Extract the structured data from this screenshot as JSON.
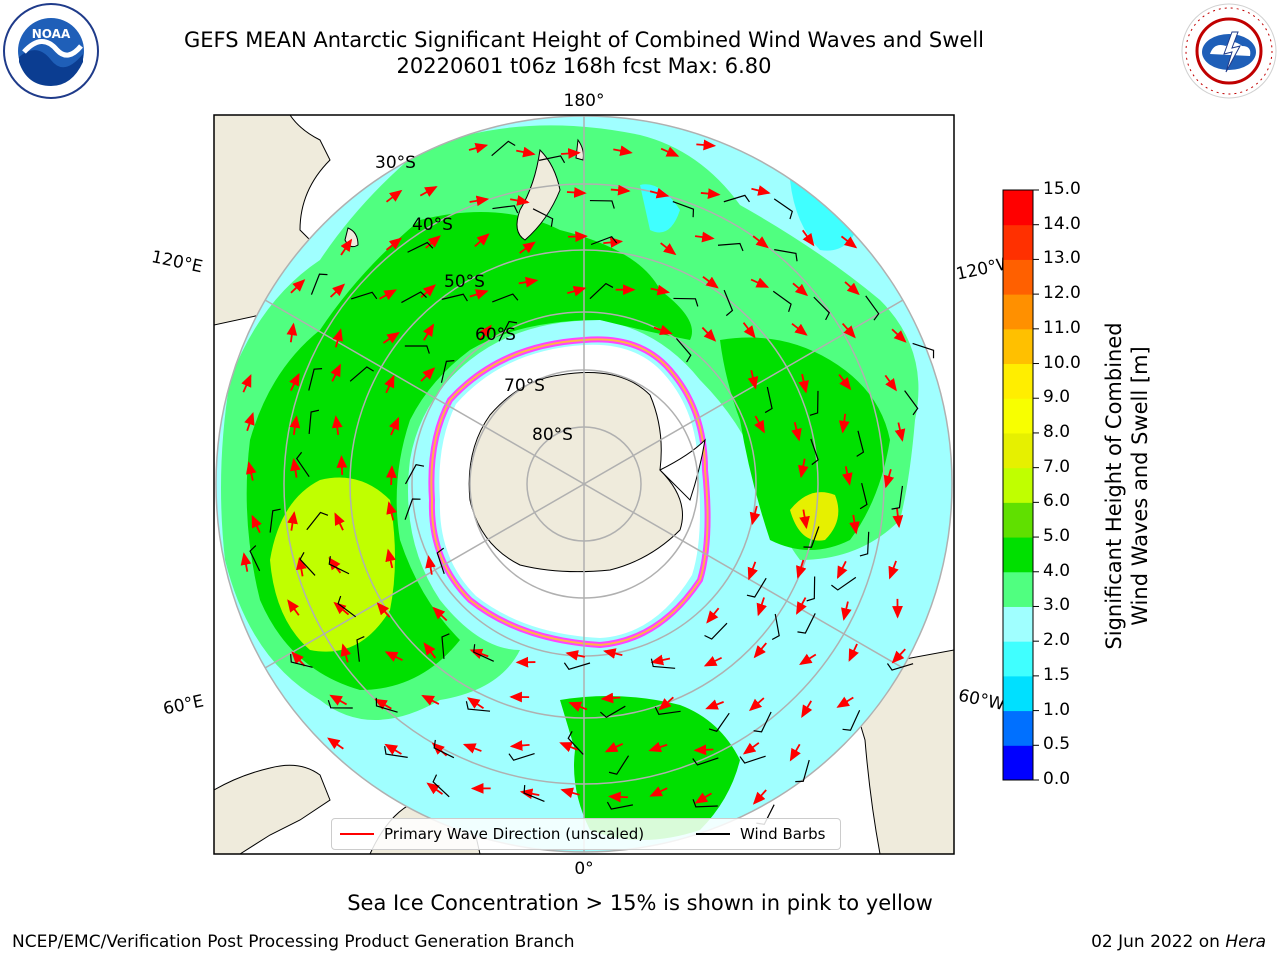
{
  "title": {
    "line1": "GEFS MEAN Antarctic Significant Height of Combined Wind Waves and Swell",
    "line2": "20220601 t06z 168h fcst   Max: 6.80"
  },
  "logos": {
    "left": {
      "name": "noaa-logo",
      "text": "NOAA"
    },
    "right": {
      "name": "national-weather-service-logo",
      "text": "NATIONAL WEATHER SERVICE"
    }
  },
  "map": {
    "projection": "south-polar-stereographic",
    "longitude_labels": {
      "top": "180°",
      "bottom": "0°",
      "upper_left": "120°E",
      "upper_right": "120°W",
      "lower_left": "60°E",
      "lower_right": "60°W"
    },
    "latitude_labels": [
      "30°S",
      "40°S",
      "50°S",
      "60°S",
      "70°S",
      "80°S"
    ],
    "land_color": "#efebdc",
    "ice_shelf_color": "#ffffff",
    "sea_ice_colors": [
      "#ff44ff",
      "#ffb347",
      "#ffe14d"
    ],
    "gridline_color": "#b0b0b0"
  },
  "legend": {
    "primary_wave_direction": "Primary Wave Direction (unscaled)",
    "wind_barbs": "Wind Barbs",
    "wave_direction_color": "#ff0000",
    "wind_barb_color": "#000000"
  },
  "colorbar": {
    "label_line1": "Significant Height of Combined",
    "label_line2": "Wind Waves and Swell [m]",
    "ticks": [
      "0.0",
      "0.5",
      "1.0",
      "1.5",
      "2.0",
      "3.0",
      "4.0",
      "5.0",
      "6.0",
      "7.0",
      "8.0",
      "9.0",
      "10.0",
      "11.0",
      "12.0",
      "13.0",
      "14.0",
      "15.0"
    ],
    "colors": [
      "#0000ff",
      "#0070ff",
      "#00e0ff",
      "#40ffff",
      "#a0ffff",
      "#50ff80",
      "#00e000",
      "#60e000",
      "#c0ff00",
      "#e6f000",
      "#f8ff00",
      "#ffee00",
      "#ffc000",
      "#ff9000",
      "#ff6000",
      "#ff3000",
      "#ff0000"
    ]
  },
  "footer": {
    "sea_ice_note": "Sea Ice Concentration > 15% is shown in pink to yellow",
    "credit": "NCEP/EMC/Verification Post Processing Product Generation Branch",
    "date_prefix": "02 Jun 2022 on ",
    "date_machine": "Hera"
  }
}
